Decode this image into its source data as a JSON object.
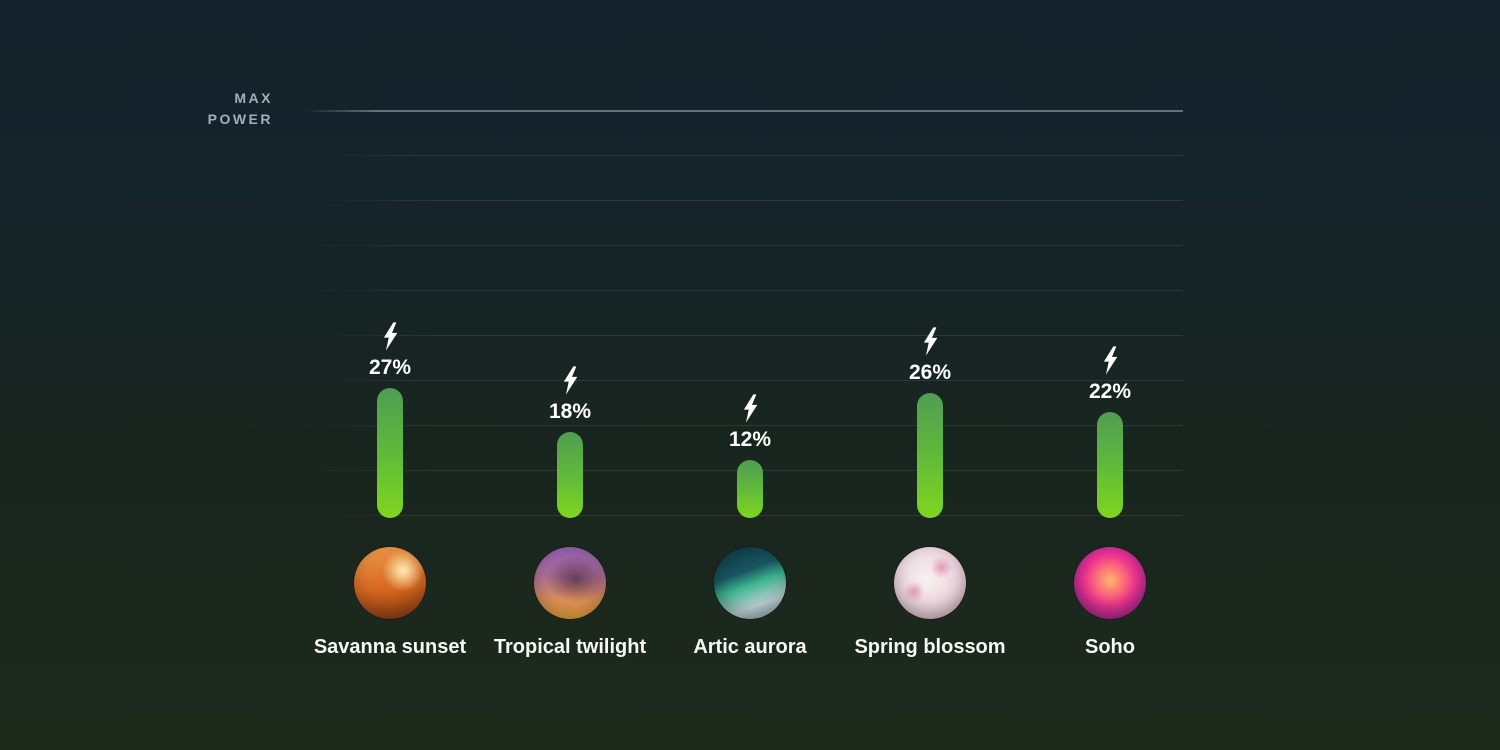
{
  "axis": {
    "max_line1": "MAX",
    "max_line2": "POWER"
  },
  "scenes": [
    {
      "id": "savanna-sunset",
      "label": "Savanna sunset",
      "value": 27,
      "percent_label": "27%",
      "icon": "lightning-bolt-icon",
      "colors": [
        "#ffeeb8",
        "#ee9a4b",
        "#d8691f",
        "#8a3a12"
      ]
    },
    {
      "id": "tropical-twilight",
      "label": "Tropical twilight",
      "value": 18,
      "percent_label": "18%",
      "icon": "lightning-bolt-icon",
      "colors": [
        "#8d5cab",
        "#b06f94",
        "#e0925c",
        "#f2a73d",
        "#2a1430"
      ]
    },
    {
      "id": "artic-aurora",
      "label": "Artic aurora",
      "value": 12,
      "percent_label": "12%",
      "icon": "lightning-bolt-icon",
      "colors": [
        "#0d323c",
        "#175560",
        "#3cb48d",
        "#c2d5d9",
        "#7fa6b6"
      ]
    },
    {
      "id": "spring-blossom",
      "label": "Spring blossom",
      "value": 26,
      "percent_label": "26%",
      "icon": "lightning-bolt-icon",
      "colors": [
        "#e39ab8",
        "#f8f1f2",
        "#ecd5dd",
        "#cba4b8"
      ]
    },
    {
      "id": "soho",
      "label": "Soho",
      "value": 22,
      "percent_label": "22%",
      "icon": "lightning-bolt-icon",
      "colors": [
        "#ffb870",
        "#ff7e72",
        "#ee3390",
        "#b22b95",
        "#5e2a7d"
      ]
    }
  ],
  "theme": {
    "bg_top": "#13212a",
    "bg_mid": "#18251f",
    "bg_bottom": "#1e2a1b",
    "bar_top": "#4f9d53",
    "bar_mid": "#63bc37",
    "bar_bottom": "#80d61e",
    "grid_faint": "rgba(255,255,255,0.09)",
    "grid_bright": "rgba(205,222,231,0.42)",
    "axis_text": "#9fb0b8",
    "text_white": "#ffffff",
    "label_text": "#f5f8f5"
  },
  "chart_data": {
    "type": "bar",
    "categories": [
      "Savanna sunset",
      "Tropical twilight",
      "Artic aurora",
      "Spring blossom",
      "Soho"
    ],
    "values": [
      27,
      18,
      12,
      26,
      22
    ],
    "value_labels": [
      "27%",
      "18%",
      "12%",
      "26%",
      "22%"
    ],
    "title": "",
    "xlabel": "",
    "ylabel": "MAX POWER",
    "ylim": [
      0,
      100
    ],
    "y_max_tick_label": "MAX POWER",
    "gridline_count": 10,
    "grid": true,
    "legend": false,
    "bar_color_gradient": [
      "#4f9d53",
      "#80d61e"
    ],
    "bar_style": "rounded-pill",
    "annotation": "white lightning bolt icon above each percentage label; circular scene thumbnail below each bar"
  }
}
